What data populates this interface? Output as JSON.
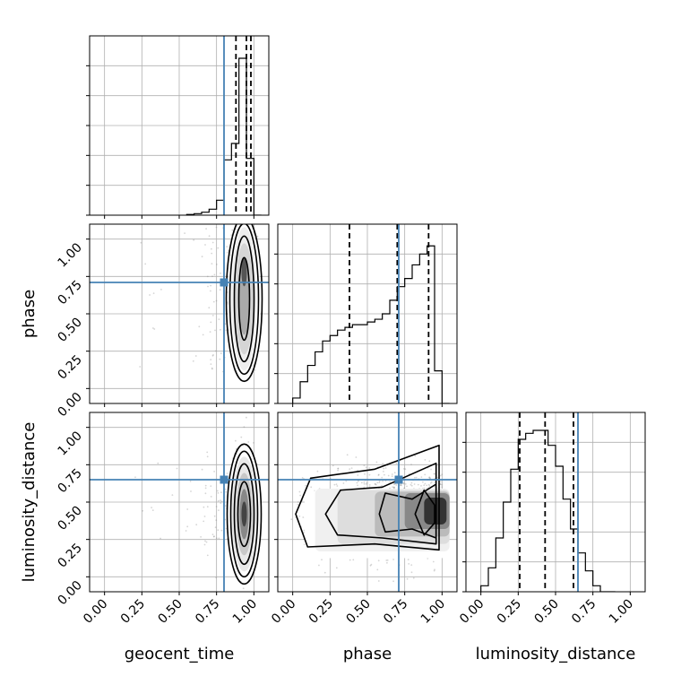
{
  "chart_data": {
    "type": "corner",
    "parameters": [
      "geocent_time",
      "phase",
      "luminosity_distance"
    ],
    "axis_range": [
      -0.1,
      1.1
    ],
    "ticks": [
      0.0,
      0.25,
      0.5,
      0.75,
      1.0
    ],
    "tick_labels": [
      "0.00",
      "0.25",
      "0.50",
      "0.75",
      "1.00"
    ],
    "grid": true,
    "truths": {
      "geocent_time": 0.8,
      "phase": 0.71,
      "luminosity_distance": 0.65
    },
    "truth_color": "#4682b4",
    "histograms": [
      {
        "parameter": "geocent_time",
        "bin_edges": [
          0.55,
          0.6,
          0.65,
          0.7,
          0.75,
          0.8,
          0.85,
          0.9,
          0.95,
          1.0,
          1.05
        ],
        "counts": [
          0.5,
          1,
          2,
          4,
          10,
          37,
          48,
          105,
          38,
          0
        ],
        "ymax": 120,
        "quantiles": [
          0.88,
          0.95,
          0.98
        ]
      },
      {
        "parameter": "phase",
        "bin_edges": [
          0.0,
          0.05,
          0.1,
          0.15,
          0.2,
          0.25,
          0.3,
          0.35,
          0.4,
          0.45,
          0.5,
          0.55,
          0.6,
          0.65,
          0.7,
          0.75,
          0.8,
          0.85,
          0.9,
          0.95,
          1.0,
          1.05
        ],
        "counts": [
          2,
          8,
          14,
          19,
          23,
          25,
          27,
          28,
          29,
          29,
          30,
          31,
          33,
          38,
          43,
          46,
          51,
          55,
          58,
          12,
          0
        ],
        "ymax": 66,
        "quantiles": [
          0.38,
          0.7,
          0.91
        ]
      },
      {
        "parameter": "luminosity_distance",
        "bin_edges": [
          0.0,
          0.05,
          0.1,
          0.15,
          0.2,
          0.25,
          0.3,
          0.35,
          0.4,
          0.45,
          0.5,
          0.55,
          0.6,
          0.65,
          0.7,
          0.75,
          0.8,
          0.85,
          0.9
        ],
        "counts": [
          2,
          8,
          18,
          30,
          41,
          51,
          53,
          54,
          54,
          49,
          42,
          31,
          21,
          13,
          7,
          2,
          0,
          0
        ],
        "ymax": 60,
        "quantiles": [
          0.26,
          0.43,
          0.62
        ]
      }
    ],
    "joint_distributions": [
      {
        "x": "geocent_time",
        "y": "phase",
        "x_center": 0.935,
        "x_sd": 0.03,
        "y_range": [
          0.1,
          1.08
        ]
      },
      {
        "x": "geocent_time",
        "y": "luminosity_distance",
        "x_center": 0.935,
        "x_sd": 0.03,
        "y_range": [
          0.15,
          0.95
        ]
      },
      {
        "x": "phase",
        "y": "luminosity_distance",
        "x_range": [
          0.0,
          1.0
        ],
        "y_range": [
          0.15,
          0.9
        ]
      }
    ]
  }
}
